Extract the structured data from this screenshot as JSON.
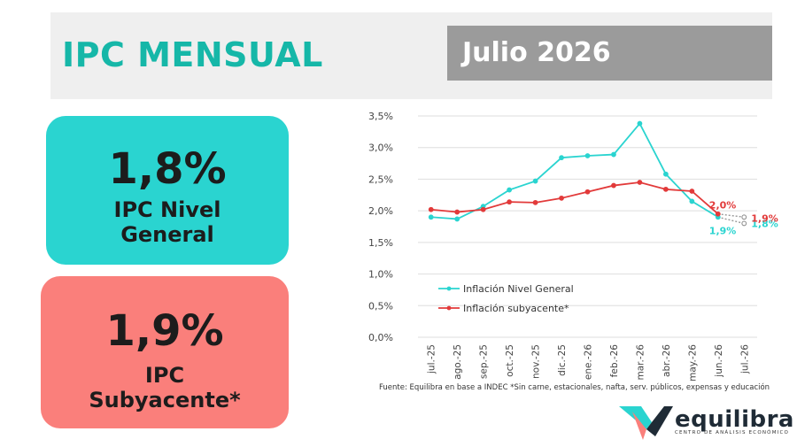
{
  "header": {
    "title": "IPC MENSUAL",
    "period": "Julio 2026"
  },
  "cards": [
    {
      "value": "1,8%",
      "label_line1": "IPC Nivel",
      "label_line2": "General",
      "color": "#2ad4d0"
    },
    {
      "value": "1,9%",
      "label_line1": "IPC",
      "label_line2": "Subyacente*",
      "color": "#fa7f7b"
    }
  ],
  "chart_data": {
    "type": "line",
    "categories": [
      "jul.-25",
      "ago.-25",
      "sep.-25",
      "oct.-25",
      "nov.-25",
      "dic.-25",
      "ene.-26",
      "feb.-26",
      "mar.-26",
      "abr.-26",
      "may.-26",
      "jun.-26",
      "jul.-26"
    ],
    "ylim": [
      0,
      3.5
    ],
    "yticks": [
      "0,0%",
      "0,5%",
      "1,0%",
      "1,5%",
      "2,0%",
      "2,5%",
      "3,0%",
      "3,5%"
    ],
    "grid": true,
    "legend_position": "center-left",
    "series": [
      {
        "name": "Inflación Nivel General",
        "color": "#2ad4d0",
        "values": [
          1.9,
          1.87,
          2.07,
          2.33,
          2.47,
          2.84,
          2.87,
          2.89,
          3.38,
          2.58,
          2.15,
          1.9,
          1.8
        ],
        "end_labels": [
          "1,9%",
          "1,8%"
        ]
      },
      {
        "name": "Inflación subyacente*",
        "color": "#e23a3a",
        "values": [
          2.02,
          1.98,
          2.02,
          2.14,
          2.13,
          2.2,
          2.3,
          2.4,
          2.45,
          2.34,
          2.31,
          1.95,
          1.9
        ],
        "end_labels": [
          "2,0%",
          "1,9%"
        ]
      }
    ],
    "projected_last_point": true
  },
  "source": "Fuente: Equilibra en base a INDEC *Sin carne, estacionales, nafta, serv. públicos, expensas y educación",
  "logo": {
    "name": "equilibra",
    "tagline": "CENTRO DE ANÁLISIS ECONÓMICO"
  }
}
